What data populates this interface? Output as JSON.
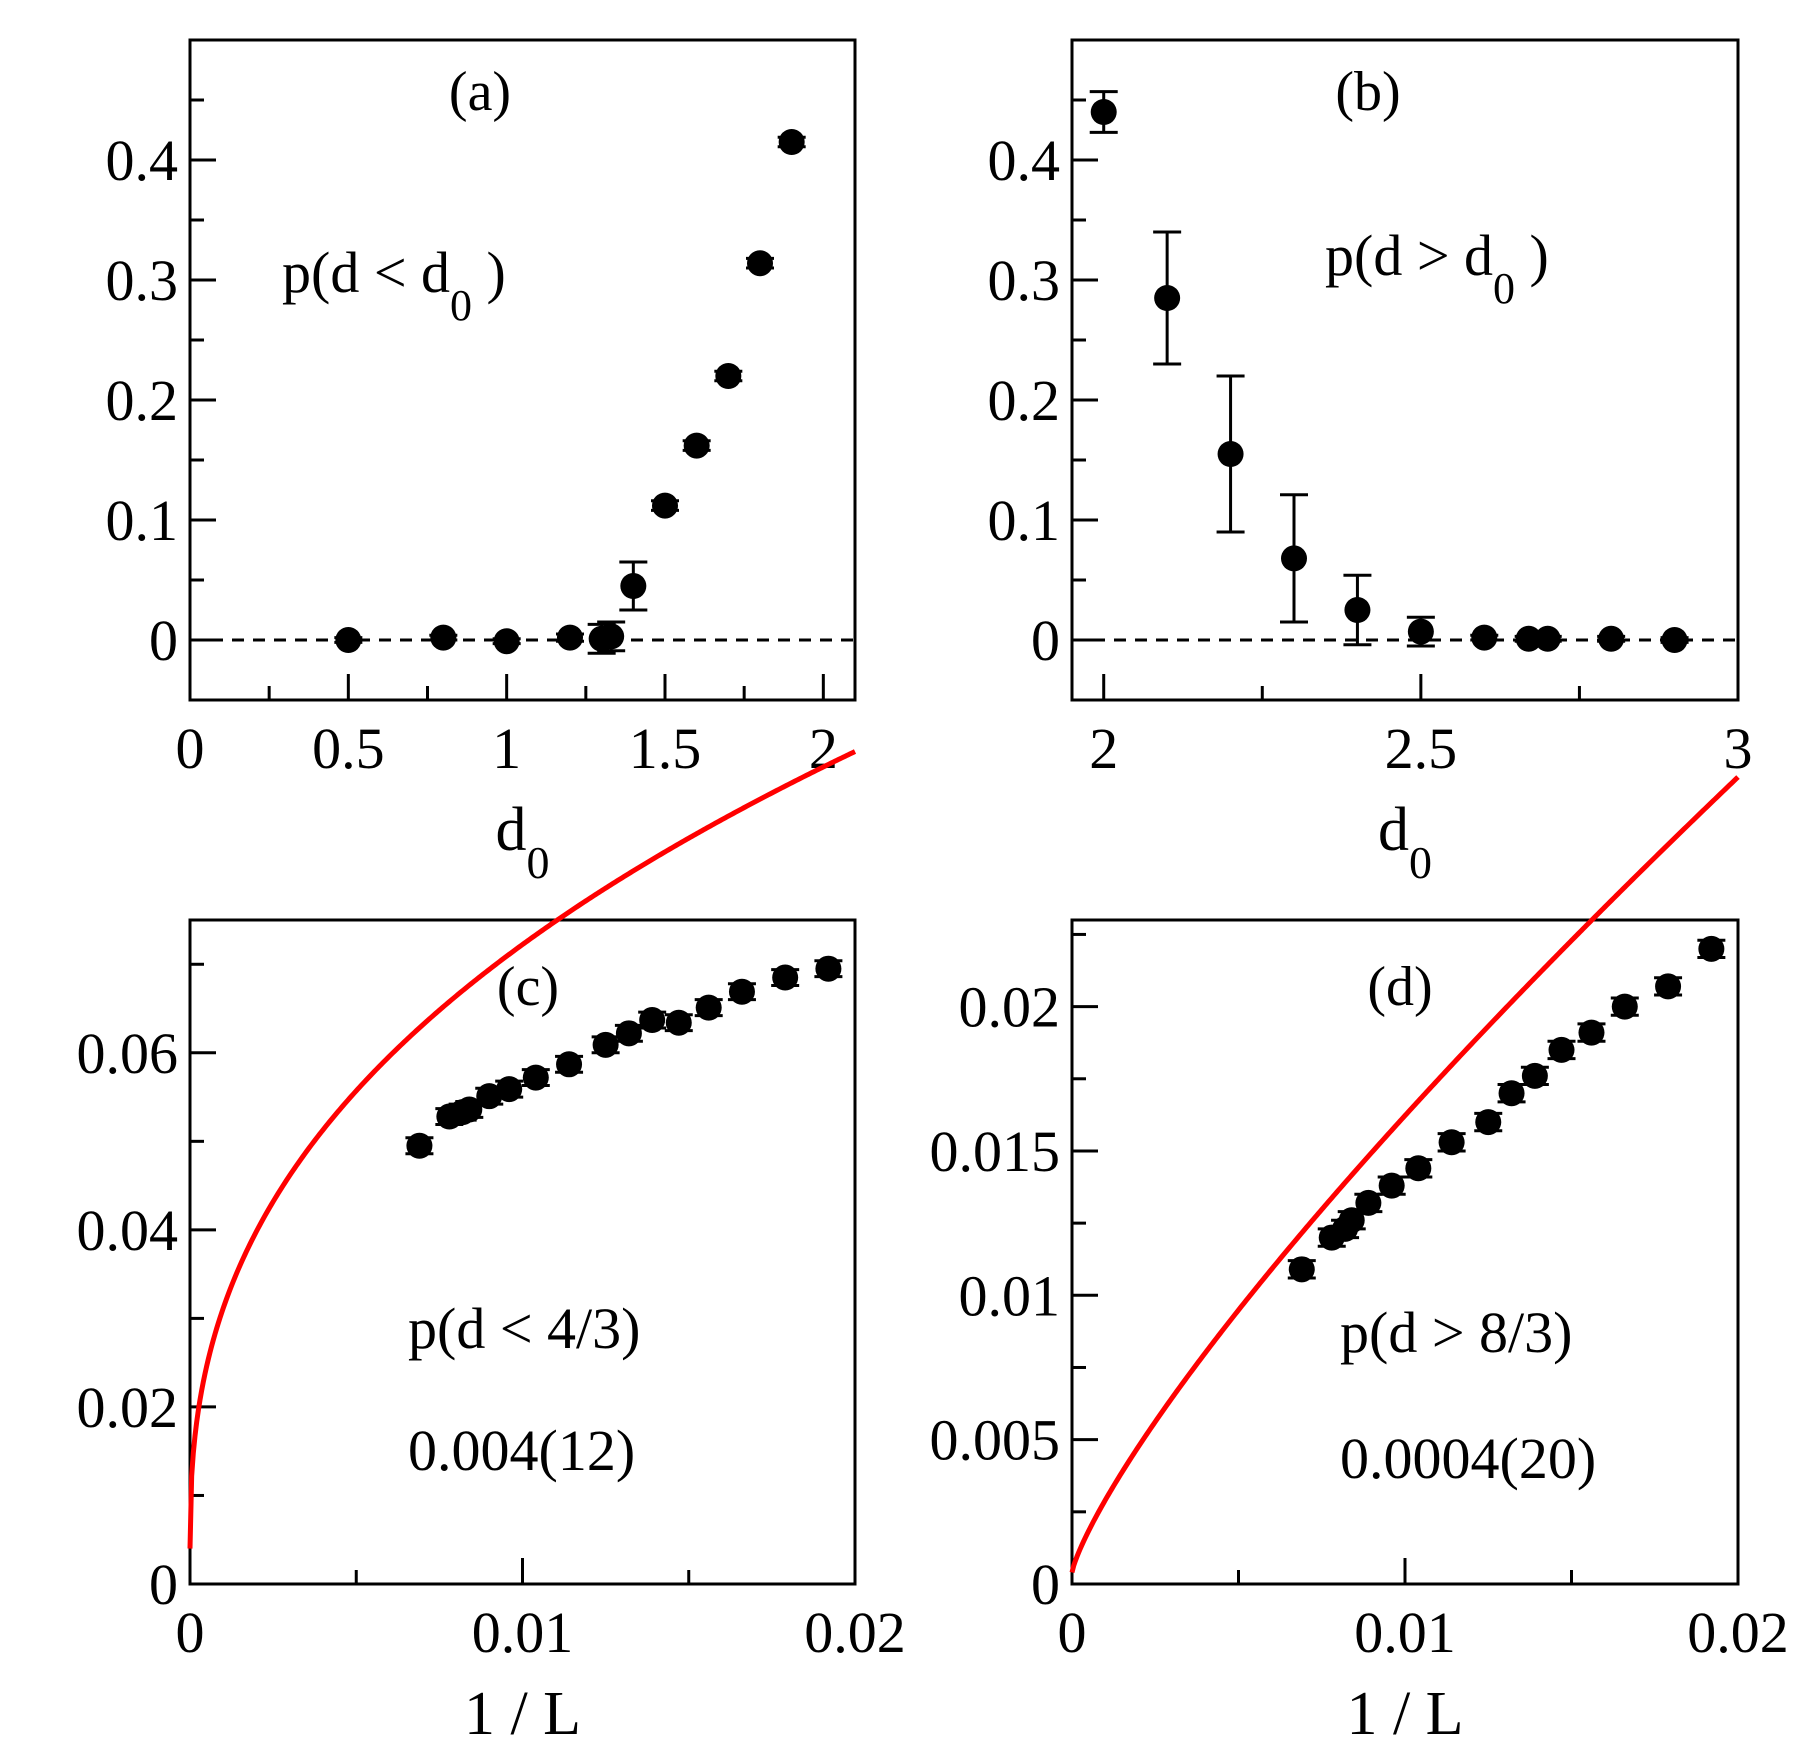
{
  "colors": {
    "points": "#000000",
    "fit": "#ff0000",
    "axes": "#000000",
    "zero_line": "#000000"
  },
  "chart_data": [
    {
      "id": "a",
      "type": "scatter",
      "panel_label": "(a)",
      "annotation": {
        "text": "p(d < d",
        "sub": "0",
        "tail": " )"
      },
      "xlabel": {
        "text": "d",
        "sub": "0"
      },
      "ylabel": "",
      "xlim": [
        0,
        2.1
      ],
      "ylim": [
        -0.05,
        0.5
      ],
      "xticks": [
        0,
        0.5,
        1,
        1.5,
        2
      ],
      "xtick_labels": [
        "0",
        "0.5",
        "1",
        "1.5",
        "2"
      ],
      "x_minor_step": 0.25,
      "yticks": [
        0,
        0.1,
        0.2,
        0.3,
        0.4
      ],
      "ytick_labels": [
        "0",
        "0.1",
        "0.2",
        "0.3",
        "0.4"
      ],
      "y_minor_step": 0.05,
      "zero_line": true,
      "series": [
        {
          "name": "p(d < d0)",
          "x": [
            0.5,
            0.8,
            1.0,
            1.2,
            1.3,
            1.33,
            1.4,
            1.5,
            1.6,
            1.7,
            1.8,
            1.9
          ],
          "y": [
            0.0,
            0.002,
            -0.001,
            0.002,
            0.001,
            0.003,
            0.045,
            0.112,
            0.162,
            0.22,
            0.314,
            0.415
          ],
          "err": [
            0.002,
            0.002,
            0.002,
            0.003,
            0.012,
            0.012,
            0.02,
            0.004,
            0.004,
            0.004,
            0.004,
            0.004
          ]
        }
      ]
    },
    {
      "id": "b",
      "type": "scatter",
      "panel_label": "(b)",
      "annotation": {
        "text": "p(d > d",
        "sub": "0",
        "tail": " )"
      },
      "xlabel": {
        "text": "d",
        "sub": "0"
      },
      "ylabel": "",
      "xlim": [
        1.95,
        3.0
      ],
      "ylim": [
        -0.05,
        0.5
      ],
      "xticks": [
        2,
        2.5,
        3
      ],
      "xtick_labels": [
        "2",
        "2.5",
        "3"
      ],
      "x_minor_step": 0.25,
      "yticks": [
        0,
        0.1,
        0.2,
        0.3,
        0.4
      ],
      "ytick_labels": [
        "0",
        "0.1",
        "0.2",
        "0.3",
        "0.4"
      ],
      "y_minor_step": 0.05,
      "zero_line": true,
      "series": [
        {
          "name": "p(d > d0)",
          "x": [
            2.0,
            2.1,
            2.2,
            2.3,
            2.4,
            2.5,
            2.6,
            2.67,
            2.7,
            2.8,
            2.9
          ],
          "y": [
            0.44,
            0.285,
            0.155,
            0.068,
            0.025,
            0.007,
            0.002,
            0.001,
            0.001,
            0.001,
            0.0
          ],
          "err": [
            0.017,
            0.055,
            0.065,
            0.053,
            0.029,
            0.012,
            0.002,
            0.002,
            0.002,
            0.002,
            0.002
          ]
        }
      ]
    },
    {
      "id": "c",
      "type": "scatter",
      "panel_label": "(c)",
      "annotation": {
        "line1": "p(d < 4/3)",
        "line2": "0.004(12)"
      },
      "xlabel": {
        "text": "1 / L"
      },
      "ylabel": "",
      "xlim": [
        0,
        0.02
      ],
      "ylim": [
        0,
        0.075
      ],
      "xticks": [
        0,
        0.01,
        0.02
      ],
      "xtick_labels": [
        "0",
        "0.01",
        "0.02"
      ],
      "x_minor_step": 0.005,
      "yticks": [
        0,
        0.02,
        0.04,
        0.06
      ],
      "ytick_labels": [
        "0",
        "0.02",
        "0.04",
        "0.06"
      ],
      "y_minor_step": 0.01,
      "zero_line": false,
      "fit": {
        "form": "a + b*x^c",
        "a": 0.004,
        "b": 0.4305,
        "c": 0.4,
        "x_range": [
          0,
          0.02
        ]
      },
      "series": [
        {
          "name": "p(d < 4/3)",
          "x": [
            0.0069,
            0.0078,
            0.0082,
            0.0084,
            0.009,
            0.0096,
            0.0104,
            0.0114,
            0.0125,
            0.0132,
            0.0139,
            0.0147,
            0.0156,
            0.0166,
            0.0179,
            0.0192
          ],
          "y": [
            0.0495,
            0.0528,
            0.0533,
            0.0536,
            0.0551,
            0.0559,
            0.0572,
            0.0587,
            0.0609,
            0.0622,
            0.0637,
            0.0634,
            0.0651,
            0.0669,
            0.0685,
            0.0695
          ],
          "err": [
            0.0009,
            0.0009,
            0.0009,
            0.0009,
            0.0009,
            0.0009,
            0.0009,
            0.0009,
            0.0009,
            0.0009,
            0.0009,
            0.0009,
            0.0009,
            0.0009,
            0.0009,
            0.0009
          ]
        }
      ]
    },
    {
      "id": "d",
      "type": "scatter",
      "panel_label": "(d)",
      "annotation": {
        "line1": "p(d > 8/3)",
        "line2": "0.0004(20)"
      },
      "xlabel": {
        "text": "1 / L"
      },
      "ylabel": "",
      "xlim": [
        0,
        0.02
      ],
      "ylim": [
        0,
        0.023
      ],
      "xticks": [
        0,
        0.01,
        0.02
      ],
      "xtick_labels": [
        "0",
        "0.01",
        "0.02"
      ],
      "x_minor_step": 0.005,
      "yticks": [
        0,
        0.005,
        0.01,
        0.015,
        0.02
      ],
      "ytick_labels": [
        "0",
        "0.005",
        "0.01",
        "0.015",
        "0.02"
      ],
      "y_minor_step": 0.0025,
      "zero_line": false,
      "fit": {
        "form": "a + b*x^c",
        "a": 0.0004,
        "b": 0.63,
        "c": 0.8,
        "x_range": [
          0,
          0.02
        ]
      },
      "series": [
        {
          "name": "p(d > 8/3)",
          "x": [
            0.0069,
            0.0078,
            0.0082,
            0.0084,
            0.0089,
            0.0096,
            0.0104,
            0.0114,
            0.0125,
            0.0132,
            0.0139,
            0.0147,
            0.0156,
            0.0166,
            0.0179,
            0.0192
          ],
          "y": [
            0.0109,
            0.012,
            0.0123,
            0.0126,
            0.0132,
            0.0138,
            0.0144,
            0.0153,
            0.016,
            0.017,
            0.0176,
            0.0185,
            0.0191,
            0.02,
            0.0207,
            0.022
          ],
          "err": [
            0.0003,
            0.0003,
            0.0003,
            0.0003,
            0.0003,
            0.0003,
            0.0003,
            0.0003,
            0.0003,
            0.0003,
            0.0003,
            0.0003,
            0.0003,
            0.0003,
            0.0003,
            0.0003
          ]
        }
      ]
    }
  ]
}
